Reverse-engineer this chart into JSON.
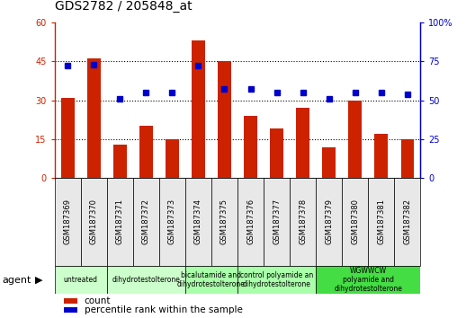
{
  "title": "GDS2782 / 205848_at",
  "samples": [
    "GSM187369",
    "GSM187370",
    "GSM187371",
    "GSM187372",
    "GSM187373",
    "GSM187374",
    "GSM187375",
    "GSM187376",
    "GSM187377",
    "GSM187378",
    "GSM187379",
    "GSM187380",
    "GSM187381",
    "GSM187382"
  ],
  "counts": [
    31,
    46,
    13,
    20,
    15,
    53,
    45,
    24,
    19,
    27,
    12,
    30,
    17,
    15
  ],
  "percentile": [
    72,
    73,
    51,
    55,
    55,
    72,
    57,
    57,
    55,
    55,
    51,
    55,
    55,
    54
  ],
  "ylim_left": [
    0,
    60
  ],
  "ylim_right": [
    0,
    100
  ],
  "yticks_left": [
    0,
    15,
    30,
    45,
    60
  ],
  "yticks_right": [
    0,
    25,
    50,
    75,
    100
  ],
  "ytick_labels_left": [
    "0",
    "15",
    "30",
    "45",
    "60"
  ],
  "ytick_labels_right": [
    "0",
    "25",
    "50",
    "75",
    "100%"
  ],
  "bar_color": "#cc2200",
  "dot_color": "#0000cc",
  "agent_groups": [
    {
      "label": "untreated",
      "start": 0,
      "end": 1,
      "color": "#ccffcc"
    },
    {
      "label": "dihydrotestolterone",
      "start": 2,
      "end": 4,
      "color": "#ccffcc"
    },
    {
      "label": "bicalutamide and\ndihydrotestolterone",
      "start": 5,
      "end": 6,
      "color": "#aaffaa"
    },
    {
      "label": "control polyamide an\ndihydrotestolterone",
      "start": 7,
      "end": 9,
      "color": "#aaffaa"
    },
    {
      "label": "WGWWCW\npolyamide and\ndihydrotestolterone",
      "start": 10,
      "end": 13,
      "color": "#44dd44"
    }
  ],
  "grid_dotted_at": [
    15,
    30,
    45
  ],
  "plot_bg": "#ffffff",
  "title_fontsize": 10,
  "tick_fontsize": 7,
  "bar_width": 0.5
}
